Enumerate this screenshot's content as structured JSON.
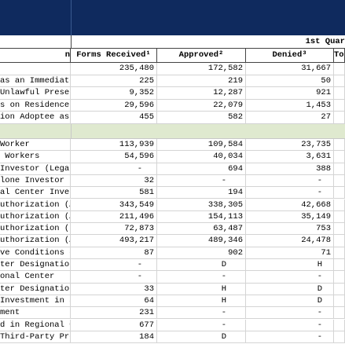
{
  "header": {
    "quarter": "1st Quar"
  },
  "table": {
    "columns": [
      "n",
      "Forms Received¹",
      "Approved²",
      "Denied³",
      "Tot"
    ],
    "rows_top": [
      [
        null,
        "235,480",
        "172,582",
        "31,667"
      ],
      [
        "as an Immediate R",
        "225",
        "219",
        "50"
      ],
      [
        "Unlawful Presence",
        "9,352",
        "12,287",
        "921"
      ],
      [
        "s on Residence",
        "29,596",
        "22,079",
        "1,453"
      ],
      [
        "ion Adoptee as an",
        "455",
        "582",
        "27"
      ]
    ],
    "rows_bottom": [
      [
        "Worker",
        "113,939",
        "109,584",
        "23,735"
      ],
      [
        " Workers",
        "54,596",
        "40,034",
        "3,631"
      ],
      [
        "Investor (Legacy)",
        "-",
        "694",
        "388"
      ],
      [
        "lone Investor",
        "32",
        "-",
        "-"
      ],
      [
        "al Center Investo",
        "581",
        "194",
        "-"
      ],
      [
        "uthorization (Asy",
        "343,549",
        "338,305",
        "42,668"
      ],
      [
        "uthorization (Ad",
        "211,496",
        "154,113",
        "35,149"
      ],
      [
        "uthorization (DAC",
        "72,873",
        "63,487",
        "753"
      ],
      [
        "uthorization (All",
        "493,217",
        "489,346",
        "24,478"
      ],
      [
        "ve Conditions on",
        "87",
        "902",
        "71"
      ],
      [
        "ter Designation U",
        "-",
        "D",
        "H"
      ],
      [
        "onal Center",
        "-",
        "-",
        "-"
      ],
      [
        "ter Designation",
        "33",
        "H",
        "D"
      ],
      [
        "Investment in a C",
        "64",
        "H",
        "D"
      ],
      [
        "ment",
        "231",
        "-",
        "-"
      ],
      [
        "d in Regional Cen",
        "677",
        "-",
        "-"
      ],
      [
        "Third-Party Prom",
        "184",
        "D",
        "-"
      ]
    ]
  }
}
